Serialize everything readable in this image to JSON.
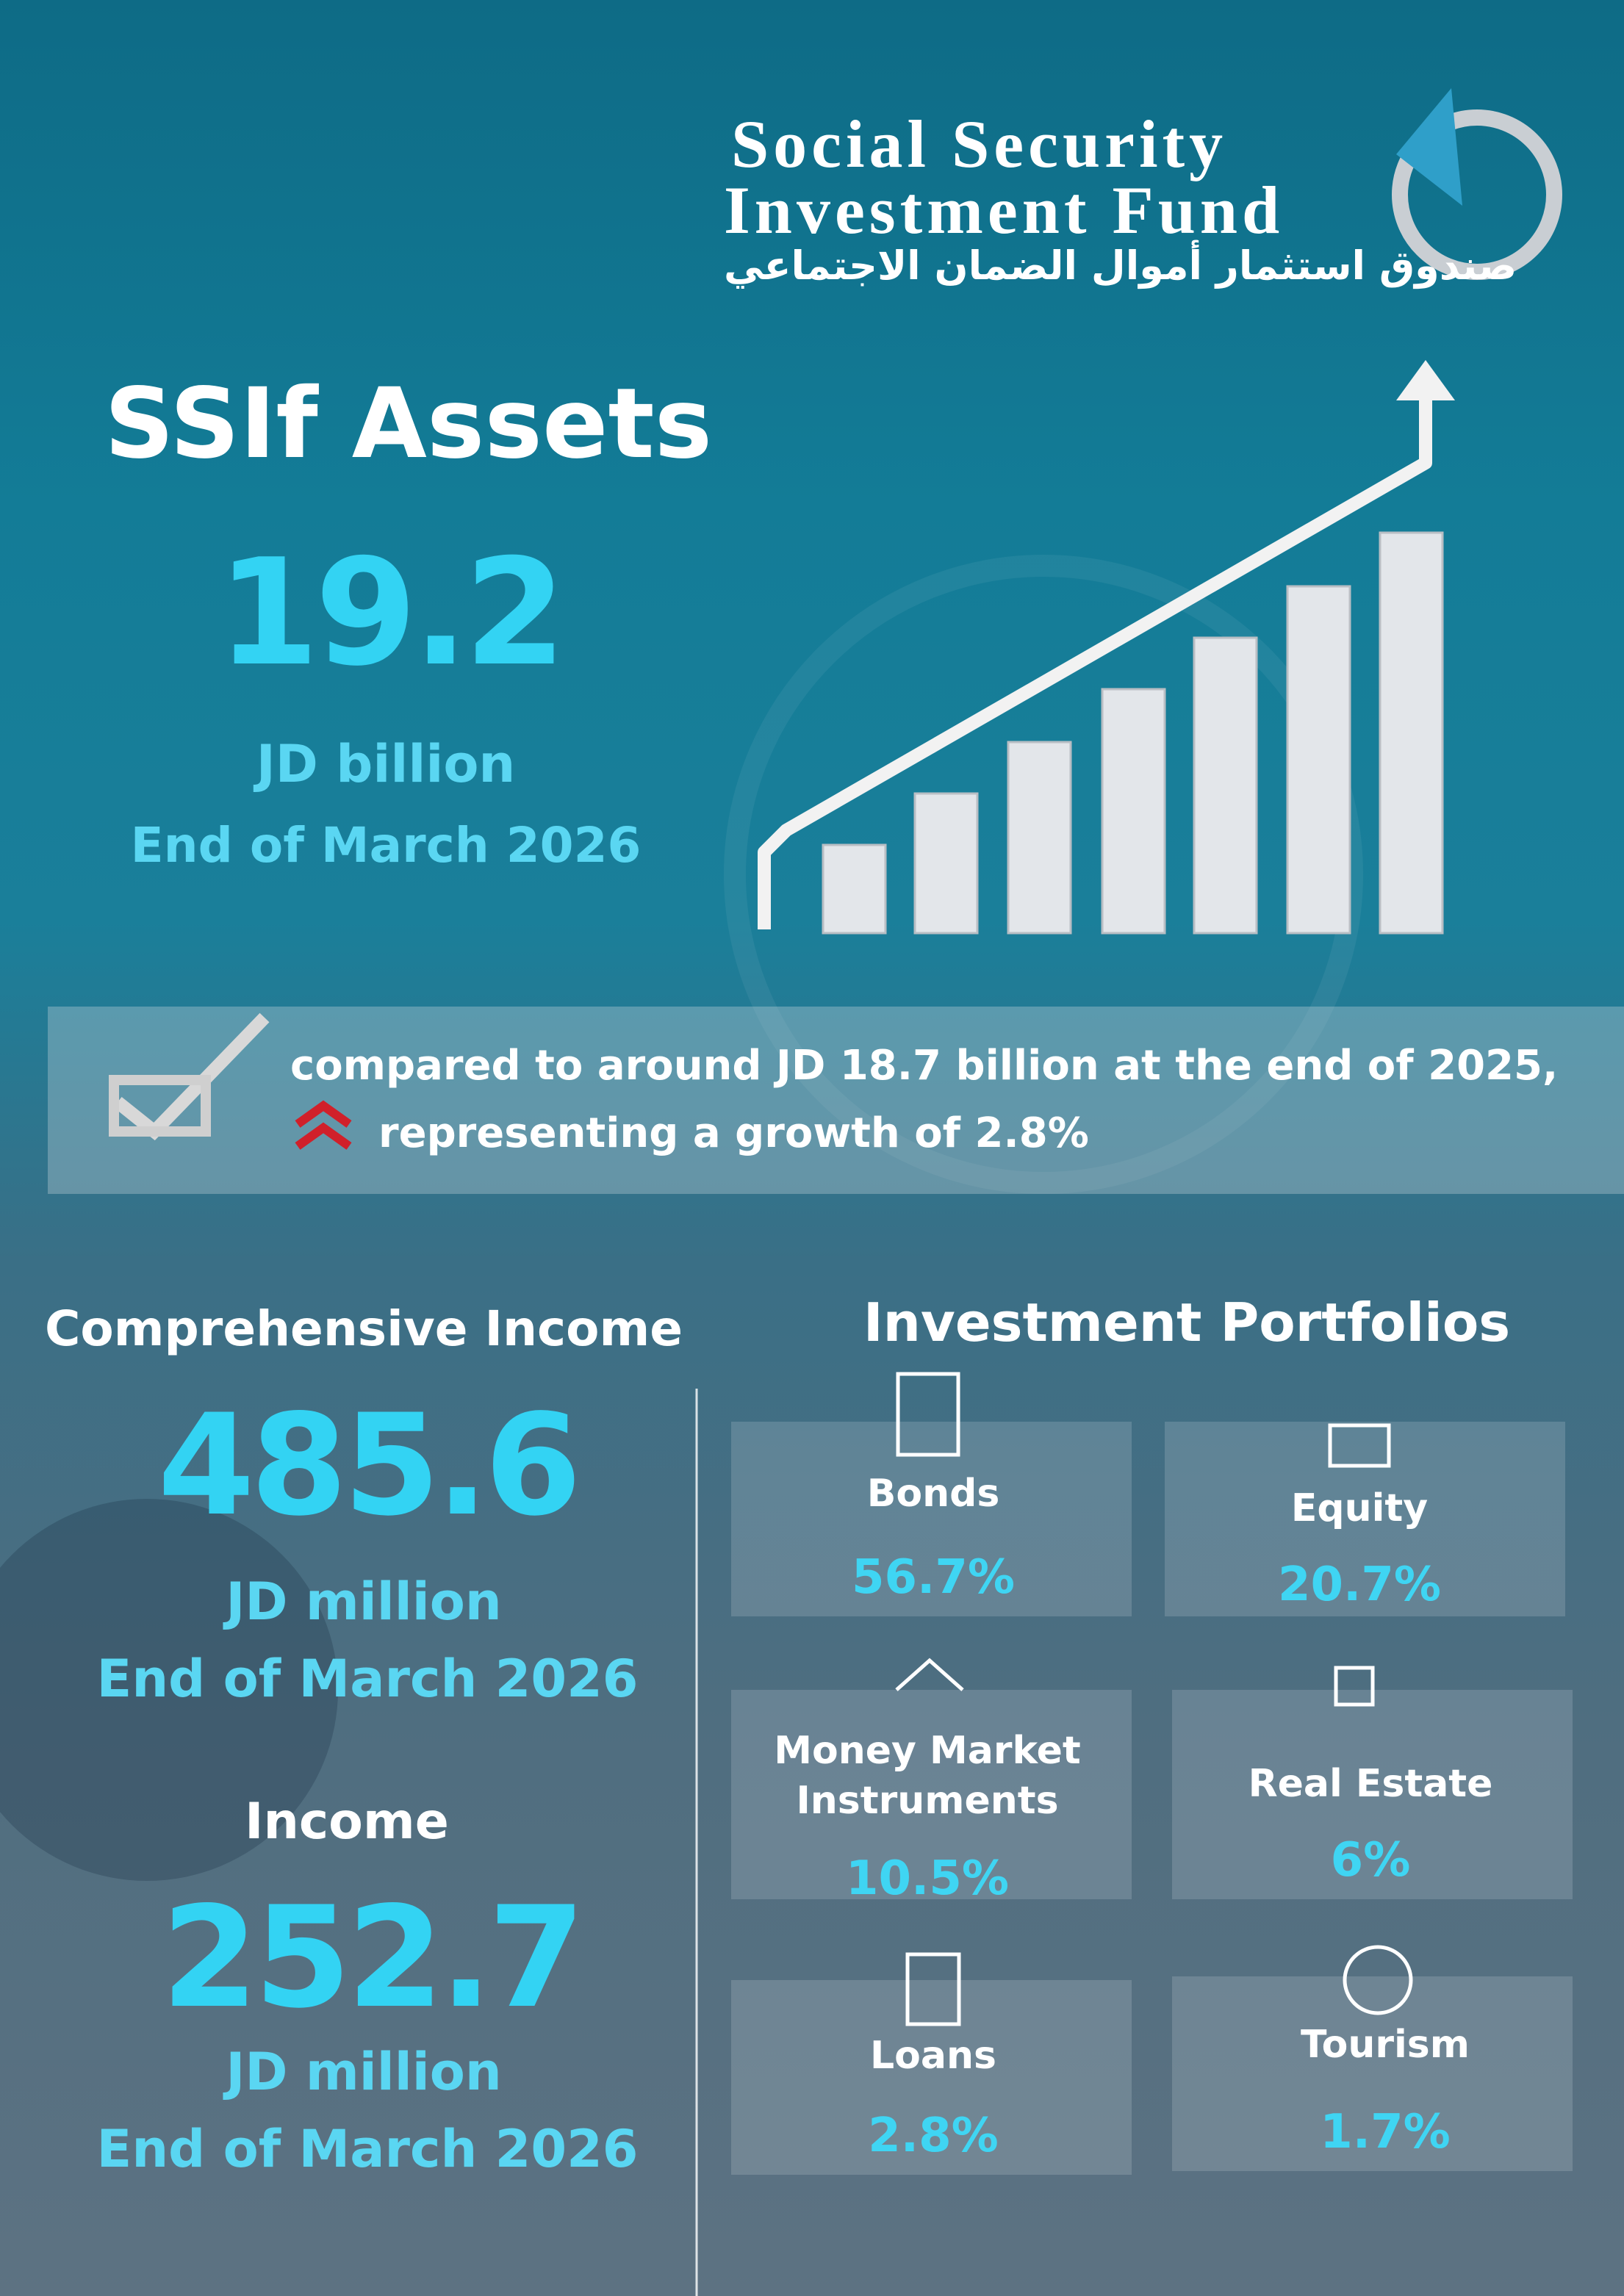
{
  "header": {
    "title_line1": "Social Security",
    "title_line2": "Investment Fund",
    "title_arabic": "صندوق استثمار أموال الضمان الاجتماعي"
  },
  "assets": {
    "title": "SSIf Assets",
    "value": "19.2",
    "unit": "JD billion",
    "period": "End of March 2026"
  },
  "comparison": {
    "line1": "compared to around JD 18.7 billion at the end of 2025,",
    "line2": "representing  a growth of 2.8%"
  },
  "comprehensive_income": {
    "title": "Comprehensive Income",
    "value": "485.6",
    "unit": "JD million",
    "period": "End of March 2026"
  },
  "income": {
    "title": "Income",
    "value": "252.7",
    "unit": "JD million",
    "period": "End of March 2026"
  },
  "portfolios": {
    "title": "Investment Portfolios",
    "items": [
      {
        "label": "Bonds",
        "value": "56.7%"
      },
      {
        "label": "Equity",
        "value": "20.7%"
      },
      {
        "label": "Money Market Instruments",
        "value": "10.5%"
      },
      {
        "label": "Real Estate",
        "value": "6%"
      },
      {
        "label": "Loans",
        "value": "2.8%"
      },
      {
        "label": "Tourism",
        "value": "1.7%"
      }
    ]
  }
}
